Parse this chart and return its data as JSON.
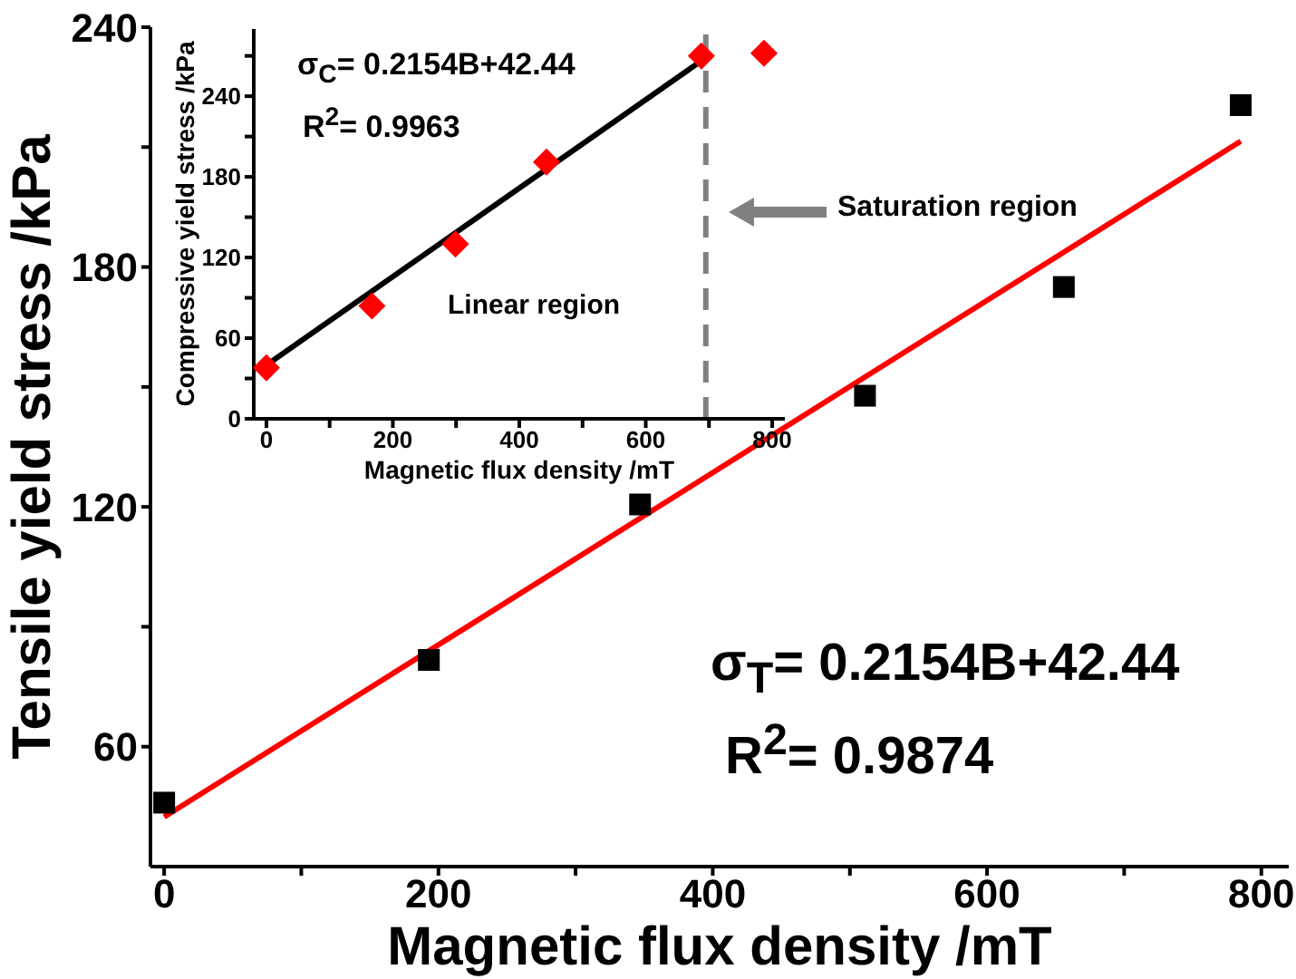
{
  "chart_data": [
    {
      "type": "scatter",
      "xlabel": "Magnetic flux density /mT",
      "ylabel": "Tensile yield stress /kPa",
      "xlim": [
        -10,
        820
      ],
      "ylim": [
        30,
        240
      ],
      "xticks": [
        0,
        {
          "value": 100,
          "label": null
        },
        200,
        {
          "value": 300,
          "label": null
        },
        400,
        {
          "value": 500,
          "label": null
        },
        600,
        {
          "value": 700,
          "label": null
        },
        800
      ],
      "yticks": [
        {
          "value": 90,
          "label": null
        },
        60,
        120,
        {
          "value": 150,
          "label": null
        },
        180,
        {
          "value": 210,
          "label": null
        },
        240
      ],
      "series": [
        {
          "type": "scatter",
          "marker": "square",
          "color": "#000000",
          "x": [
            0,
            193,
            347,
            511,
            656,
            785
          ],
          "values": [
            46,
            81.7,
            120.6,
            147.8,
            175,
            220.5
          ]
        },
        {
          "type": "line",
          "marker": "none",
          "color": "#ff0000",
          "x": [
            0,
            785
          ],
          "values": [
            42.4,
            211.5
          ]
        }
      ],
      "annotations": [
        "σ$_{T}$= 0.2154B+42.44",
        "R$^{2}$= 0.9874"
      ]
    },
    {
      "type": "scatter",
      "xlabel": "Magnetic flux density /mT",
      "ylabel": "Compressive yield stress /kPa",
      "xlim": [
        -20,
        820
      ],
      "ylim": [
        0,
        290
      ],
      "xticks": [
        0,
        {
          "value": 100,
          "label": null
        },
        200,
        {
          "value": 300,
          "label": null
        },
        400,
        {
          "value": 500,
          "label": null
        },
        600,
        {
          "value": 700,
          "label": null
        },
        800
      ],
      "yticks": [
        0,
        {
          "value": 30,
          "label": null
        },
        60,
        {
          "value": 90,
          "label": null
        },
        120,
        {
          "value": 150,
          "label": null
        },
        180,
        {
          "value": 210,
          "label": null
        },
        240,
        {
          "value": 270,
          "label": null
        }
      ],
      "series": [
        {
          "type": "scatter",
          "marker": "diamond",
          "color": "#ff0000",
          "x": [
            0,
            167,
            299,
            443,
            688,
            787
          ],
          "values": [
            38,
            84,
            130,
            191,
            270,
            272
          ]
        },
        {
          "type": "line",
          "marker": "none",
          "color": "#000000",
          "x": [
            0,
            690
          ],
          "values": [
            40,
            267
          ]
        }
      ],
      "ref_lines": [
        {
          "axis": "x",
          "value": 695,
          "color": "#808080",
          "line_style": "dashed"
        }
      ],
      "annotations": [
        "σ$_{C}$= 0.2154B+42.44",
        "R$^{2}$= 0.9963",
        "Linear region",
        "Saturation region"
      ]
    }
  ]
}
